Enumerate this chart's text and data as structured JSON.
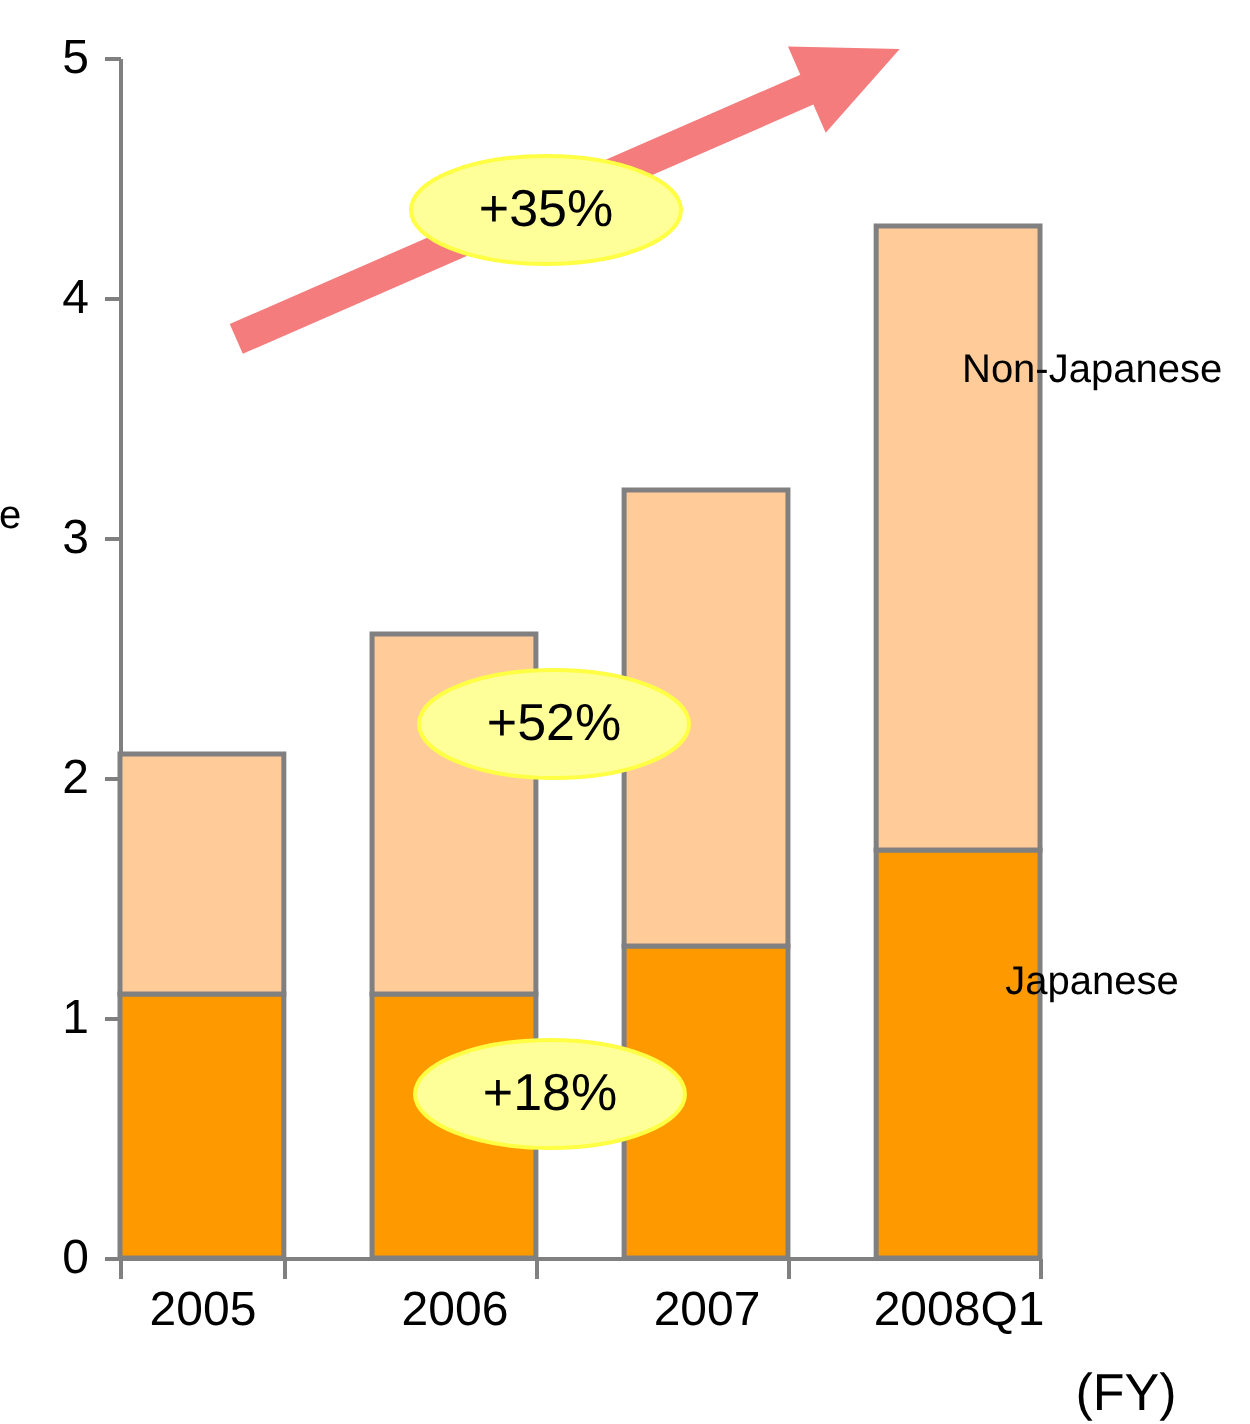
{
  "chart_data": {
    "type": "bar",
    "stacked": true,
    "categories": [
      "2005",
      "2006",
      "2007",
      "2008Q1"
    ],
    "ylabel": "e",
    "ylim": [
      0,
      5
    ],
    "yticks": [
      0,
      1,
      2,
      3,
      4,
      5
    ],
    "grid": false,
    "legend": false,
    "series": [
      {
        "name": "Japanese",
        "color": "#ff9900",
        "values": [
          1.1,
          1.1,
          1.3,
          1.7
        ]
      },
      {
        "name": "Non-Japanese",
        "color": "#ffcc99",
        "values": [
          1.0,
          1.5,
          1.9,
          2.6
        ]
      }
    ],
    "annotations": [
      "+35%",
      "+52%",
      "+18%",
      "(FY)"
    ]
  }
}
